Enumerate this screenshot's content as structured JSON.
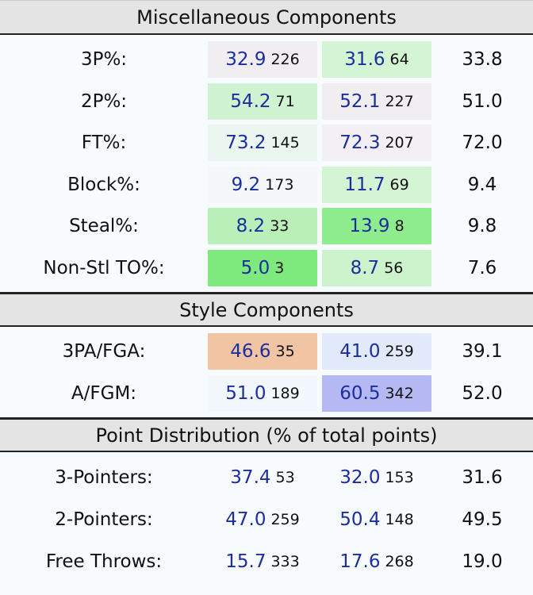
{
  "sections": [
    {
      "title": "Miscellaneous Components",
      "rows": [
        {
          "label": "3P%:",
          "a_val": "32.9",
          "a_rank": "226",
          "a_bg": "#f1eef2",
          "b_val": "31.6",
          "b_rank": "64",
          "b_bg": "#d3f5d3",
          "avg": "33.8"
        },
        {
          "label": "2P%:",
          "a_val": "54.2",
          "a_rank": "71",
          "a_bg": "#d0f3d2",
          "b_val": "52.1",
          "b_rank": "227",
          "b_bg": "#f1eef2",
          "avg": "51.0"
        },
        {
          "label": "FT%:",
          "a_val": "73.2",
          "a_rank": "145",
          "a_bg": "#eaf6ef",
          "b_val": "72.3",
          "b_rank": "207",
          "b_bg": "#f2f0f4",
          "avg": "72.0"
        },
        {
          "label": "Block%:",
          "a_val": "9.2",
          "a_rank": "173",
          "a_bg": "#f5f8fb",
          "b_val": "11.7",
          "b_rank": "69",
          "b_bg": "#d3f5d3",
          "avg": "9.4"
        },
        {
          "label": "Steal%:",
          "a_val": "8.2",
          "a_rank": "33",
          "a_bg": "#b8f0b8",
          "b_val": "13.9",
          "b_rank": "8",
          "b_bg": "#8fec8c",
          "avg": "9.8"
        },
        {
          "label": "Non-Stl TO%:",
          "a_val": "5.0",
          "a_rank": "3",
          "a_bg": "#7ee97c",
          "b_val": "8.7",
          "b_rank": "56",
          "b_bg": "#cdf3cd",
          "avg": "7.6"
        }
      ]
    },
    {
      "title": "Style Components",
      "rows": [
        {
          "label": "3PA/FGA:",
          "a_val": "46.6",
          "a_rank": "35",
          "a_bg": "#f1c4a4",
          "b_val": "41.0",
          "b_rank": "259",
          "b_bg": "#e2e9fa",
          "avg": "39.1"
        },
        {
          "label": "A/FGM:",
          "a_val": "51.0",
          "a_rank": "189",
          "a_bg": "#f2f8fd",
          "b_val": "60.5",
          "b_rank": "342",
          "b_bg": "#b5b8f2",
          "avg": "52.0"
        }
      ]
    },
    {
      "title": "Point Distribution (% of total points)",
      "rows": [
        {
          "label": "3-Pointers:",
          "a_val": "37.4",
          "a_rank": "53",
          "a_bg": "",
          "b_val": "32.0",
          "b_rank": "153",
          "b_bg": "",
          "avg": "31.6"
        },
        {
          "label": "2-Pointers:",
          "a_val": "47.0",
          "a_rank": "259",
          "a_bg": "",
          "b_val": "50.4",
          "b_rank": "148",
          "b_bg": "",
          "avg": "49.5"
        },
        {
          "label": "Free Throws:",
          "a_val": "15.7",
          "a_rank": "333",
          "a_bg": "",
          "b_val": "17.6",
          "b_rank": "268",
          "b_bg": "",
          "avg": "19.0"
        }
      ]
    }
  ]
}
